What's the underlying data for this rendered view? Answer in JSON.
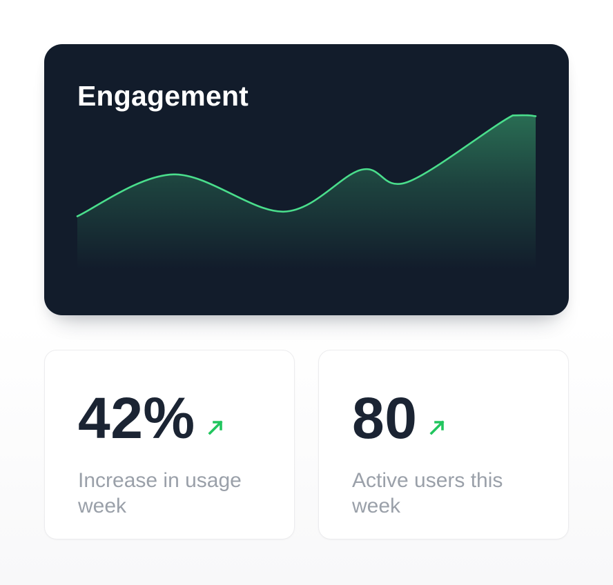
{
  "engagement_card": {
    "title": "Engagement"
  },
  "chart_data": {
    "type": "area",
    "title": "Engagement",
    "xlabel": "",
    "ylabel": "",
    "axes_visible": false,
    "grid": false,
    "legend": null,
    "x_range": [
      0,
      100
    ],
    "y_range": [
      0,
      100
    ],
    "points": [
      {
        "x": 0,
        "y": 34
      },
      {
        "x": 21,
        "y": 61
      },
      {
        "x": 45,
        "y": 37
      },
      {
        "x": 62,
        "y": 64
      },
      {
        "x": 72,
        "y": 56
      },
      {
        "x": 95,
        "y": 99
      },
      {
        "x": 100,
        "y": 98.5
      }
    ],
    "line_color": "#4ade8c",
    "fill_style": "vertical gradient of line color fading to transparent at bottom"
  },
  "stats": {
    "cards": [
      {
        "value": "42%",
        "label": "Increase in usage week",
        "trend": "up",
        "trend_icon": "arrow-up-right-icon"
      },
      {
        "value": "80",
        "label": "Active users this week",
        "trend": "up",
        "trend_icon": "arrow-up-right-icon"
      }
    ]
  },
  "colors": {
    "card_dark_bg": "#121c2b",
    "title_text": "#ffffff",
    "line_green": "#4ade8c",
    "accent_green": "#21c55e",
    "stat_value_text": "#1b2433",
    "stat_label_text": "#9aa0a9",
    "stat_card_border": "#ececee",
    "page_bg": "#ffffff"
  }
}
